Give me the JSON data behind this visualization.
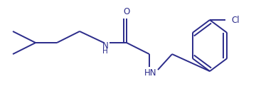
{
  "bg_color": "#ffffff",
  "line_color": "#2b2b8a",
  "text_color": "#2b2b8a",
  "line_width": 1.4,
  "font_size": 8.5,
  "figsize": [
    3.6,
    1.32
  ],
  "dpi": 100,
  "xlim": [
    0,
    360
  ],
  "ylim": [
    0,
    132
  ]
}
